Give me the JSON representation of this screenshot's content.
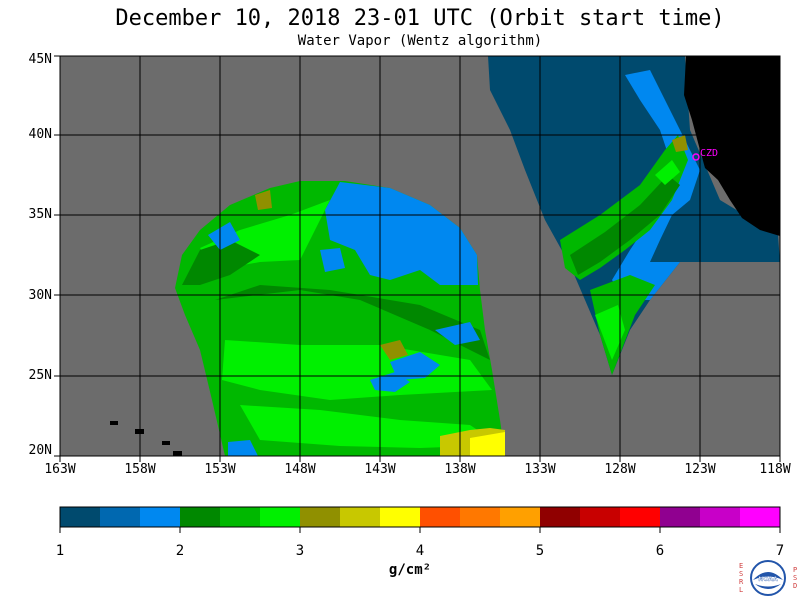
{
  "title": "December 10, 2018  23-01 UTC  (Orbit start time)",
  "subtitle": "Water Vapor (Wentz algorithm)",
  "station_label": "CZD",
  "lat_labels": [
    "45N",
    "40N",
    "35N",
    "30N",
    "25N",
    "20N"
  ],
  "lon_labels": [
    "163W",
    "158W",
    "153W",
    "148W",
    "143W",
    "138W",
    "133W",
    "128W",
    "123W",
    "118W"
  ],
  "colorbar": {
    "ticks": [
      "1",
      "2",
      "3",
      "4",
      "5",
      "6",
      "7"
    ],
    "unit": "g/cm²",
    "colors": [
      "#004a6e",
      "#0068b0",
      "#0088f0",
      "#008800",
      "#00b800",
      "#00f000",
      "#909000",
      "#c8c800",
      "#ffff00",
      "#ff5000",
      "#ff7800",
      "#ffa000",
      "#900000",
      "#c80000",
      "#ff0000",
      "#900090",
      "#c800c8",
      "#ff00ff"
    ]
  },
  "map_colors": {
    "background": "#6c6c6c",
    "land": "#000000",
    "station": "#ff00ff"
  },
  "logo": {
    "left_text": "ESRL",
    "right_text": "PSD",
    "center_text": "NOAA"
  }
}
